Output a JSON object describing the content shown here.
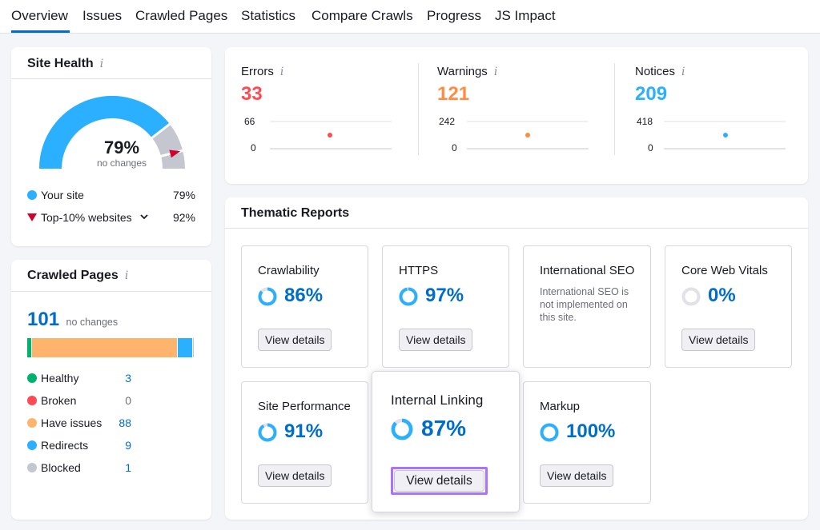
{
  "tabs": [
    {
      "label": "Overview",
      "active": true
    },
    {
      "label": "Issues"
    },
    {
      "label": "Crawled Pages"
    },
    {
      "label": "Statistics"
    },
    {
      "label": "Compare Crawls"
    },
    {
      "label": "Progress"
    },
    {
      "label": "JS Impact"
    }
  ],
  "site_health": {
    "title": "Site Health",
    "info_icon": "i",
    "percent": "79%",
    "change_text": "no changes",
    "gauge_value": 0.79,
    "benchmark_value": 0.92,
    "legend": [
      {
        "label": "Your site",
        "value": "79%",
        "color": "#2bb0ff"
      },
      {
        "label": "Top-10% websites",
        "value": "92%",
        "color": "#d1002f"
      }
    ]
  },
  "crawled_pages": {
    "title": "Crawled Pages",
    "info_icon": "i",
    "total": "101",
    "change_text": "no changes",
    "bar_segments": [
      {
        "name": "Healthy",
        "count": 3,
        "color": "#00b36b"
      },
      {
        "name": "Broken",
        "count": 0,
        "color": "#ff4953"
      },
      {
        "name": "Have issues",
        "count": 88,
        "color": "#ffb46e"
      },
      {
        "name": "Redirects",
        "count": 9,
        "color": "#2bb0ff"
      },
      {
        "name": "Blocked",
        "count": 1,
        "color": "#c4c7cf"
      }
    ],
    "legend": [
      {
        "label": "Healthy",
        "value": "3",
        "color": "#00b36b"
      },
      {
        "label": "Broken",
        "value": "0",
        "color": "#ff4953"
      },
      {
        "label": "Have issues",
        "value": "88",
        "color": "#ffb46e"
      },
      {
        "label": "Redirects",
        "value": "9",
        "color": "#2bb0ff"
      },
      {
        "label": "Blocked",
        "value": "1",
        "color": "#c4c7cf"
      }
    ]
  },
  "metrics": [
    {
      "label": "Errors",
      "value": "33",
      "color": "#ff4953",
      "axis_top": "66",
      "axis_bottom": "0"
    },
    {
      "label": "Warnings",
      "value": "121",
      "color": "#ff8c43",
      "axis_top": "242",
      "axis_bottom": "0"
    },
    {
      "label": "Notices",
      "value": "209",
      "color": "#2bb0ff",
      "axis_top": "418",
      "axis_bottom": "0"
    }
  ],
  "thematic": {
    "title": "Thematic Reports",
    "button_label": "View details",
    "tiles": [
      {
        "title": "Crawlability",
        "pct": "86%",
        "value": 0.86
      },
      {
        "title": "HTTPS",
        "pct": "97%",
        "value": 0.97
      },
      {
        "title": "International SEO",
        "note": "International SEO is not implemented on this site."
      },
      {
        "title": "Core Web Vitals",
        "pct": "0%",
        "value": 0
      },
      {
        "title": "Site Performance",
        "pct": "91%",
        "value": 0.91
      },
      {
        "title": "Internal Linking",
        "pct": "87%",
        "value": 0.87
      },
      {
        "title": "Markup",
        "pct": "100%",
        "value": 1.0
      }
    ]
  },
  "colors": {
    "accent": "#006dca",
    "highlight": "#a972ff"
  }
}
